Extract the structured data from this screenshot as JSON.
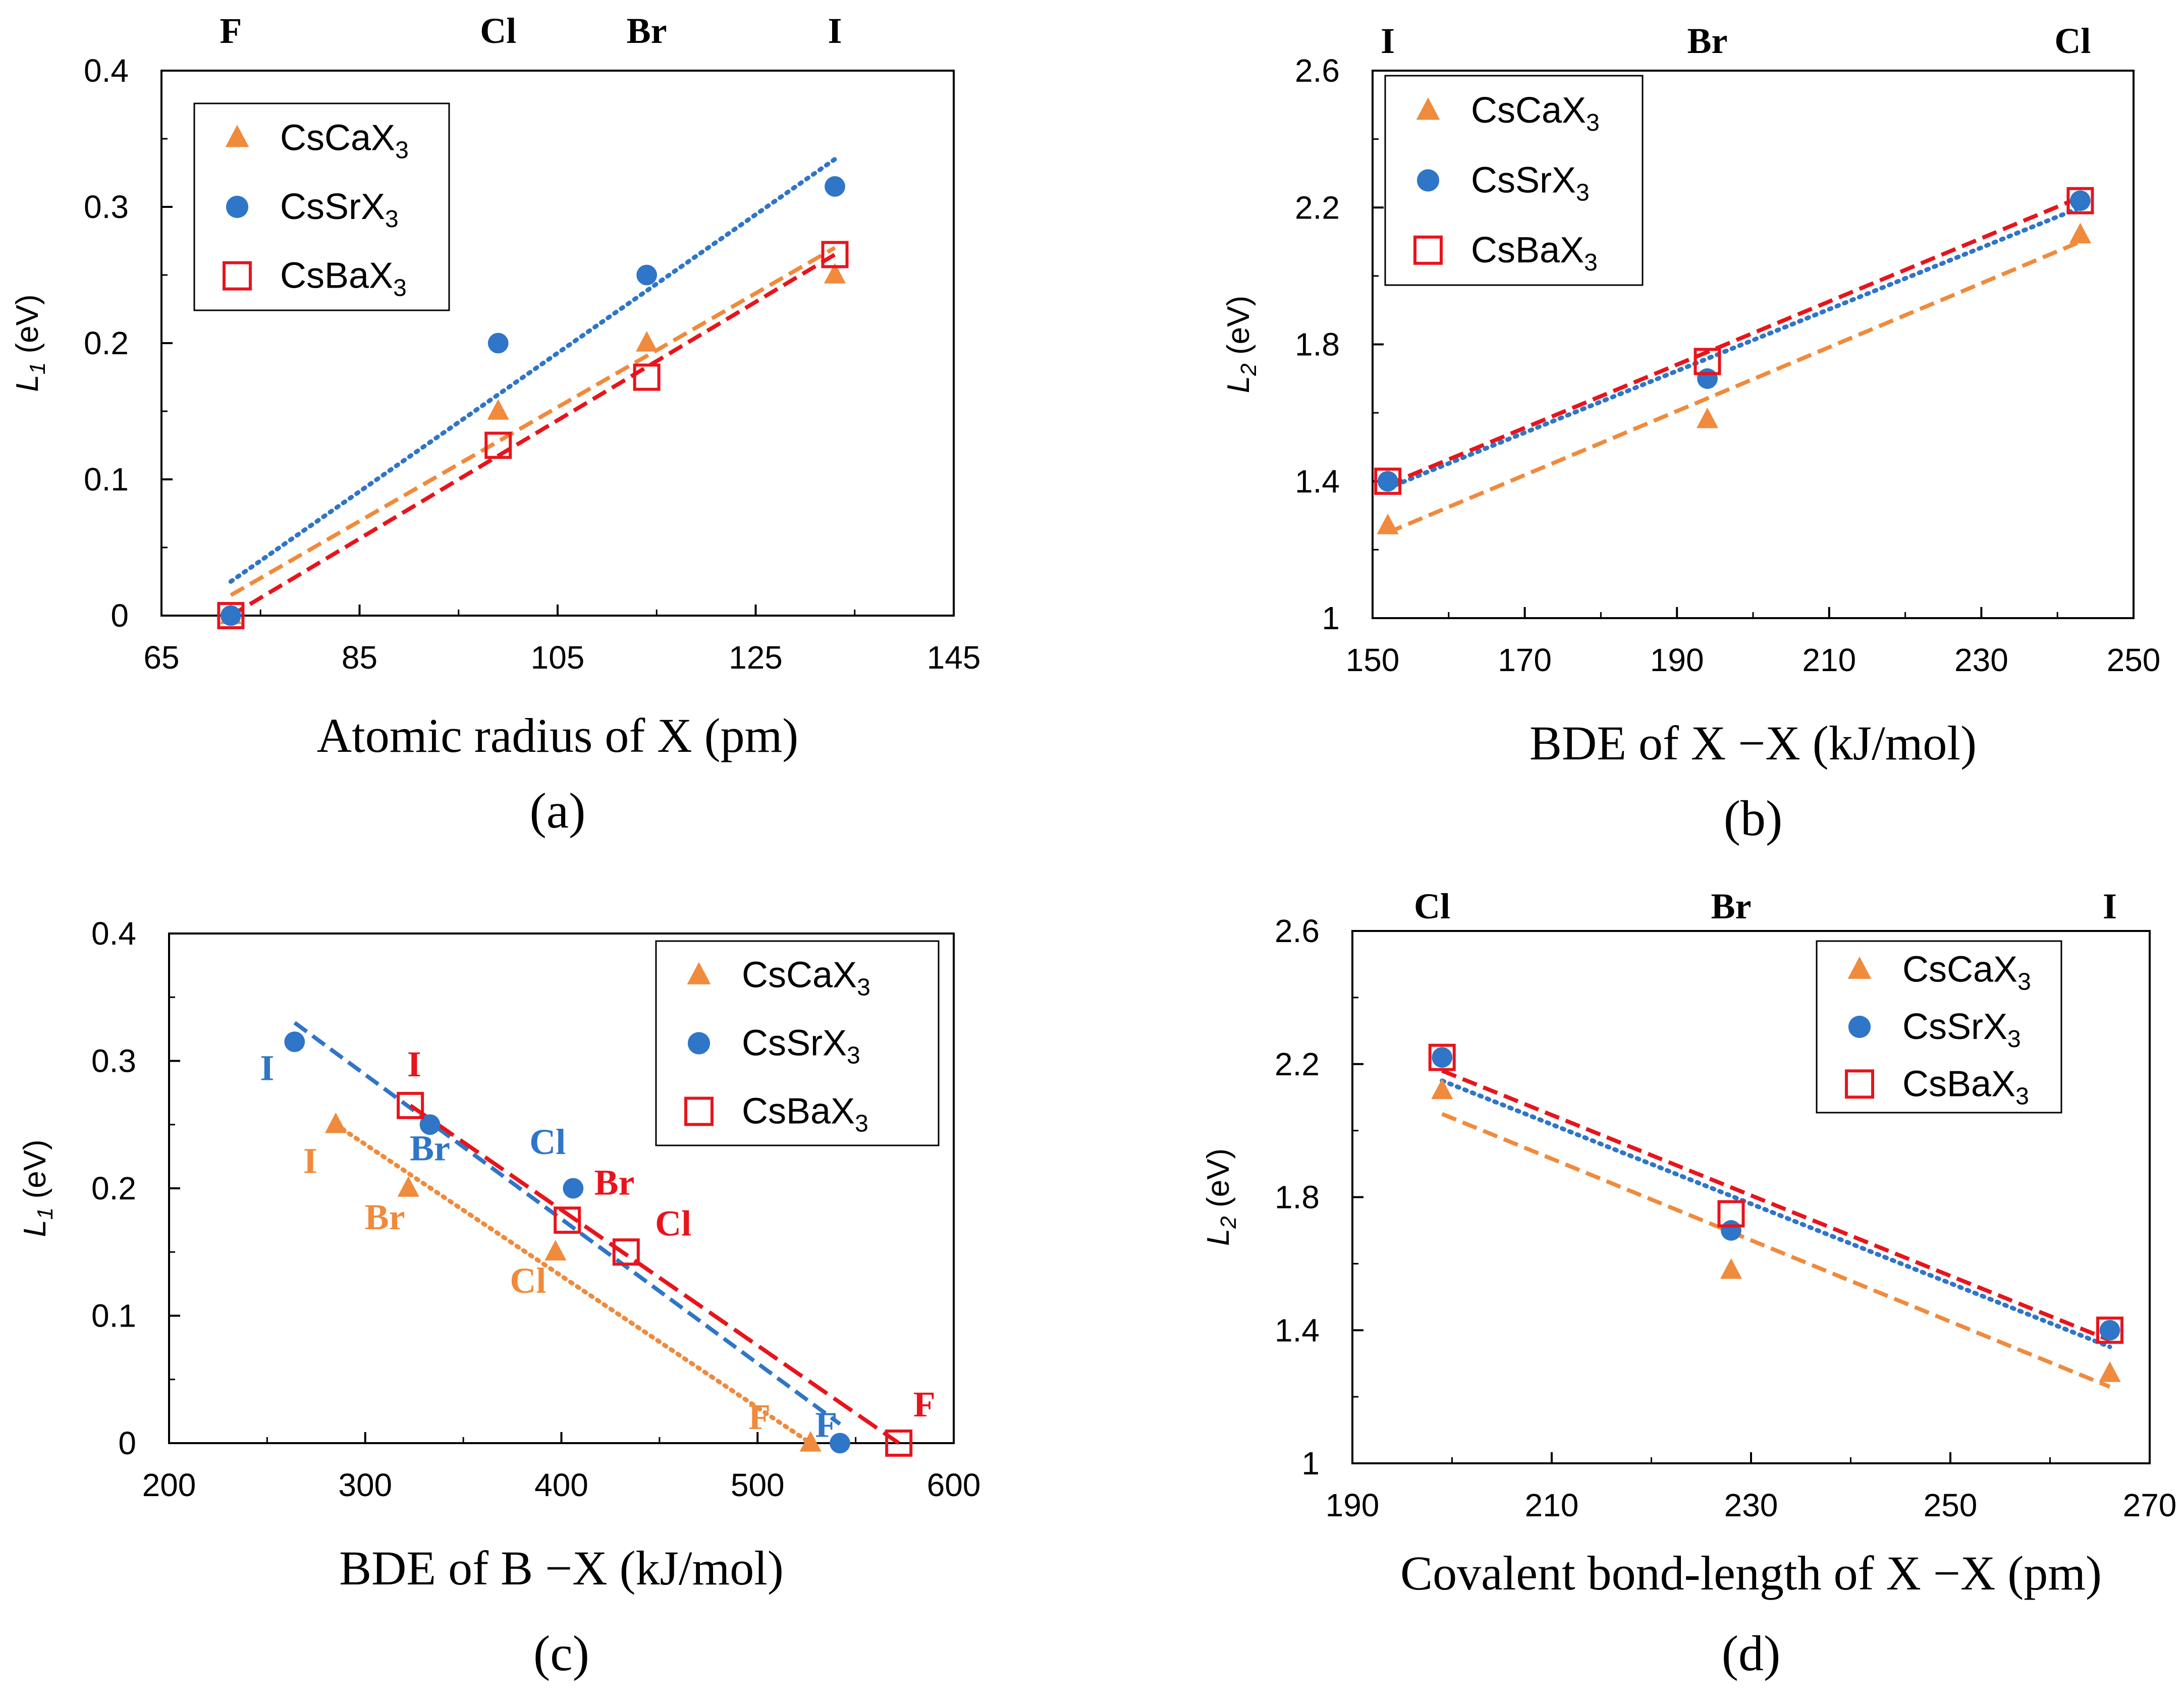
{
  "colors": {
    "ca": "#f08a3c",
    "sr": "#2f75c8",
    "ba": "#e8141c"
  },
  "chart_data": [
    {
      "id": "a",
      "type": "scatter",
      "panel_label": "(a)",
      "xlabel": "Atomic radius of X (pm)",
      "ylabel": {
        "main": "L",
        "sub": "1",
        "unit": " (eV)"
      },
      "xlim": [
        65,
        145
      ],
      "ylim": [
        0,
        0.4
      ],
      "xticks": [
        "65",
        "85",
        "105",
        "125",
        "145"
      ],
      "yticks": [
        "0",
        "0.1",
        "0.2",
        "0.3",
        "0.4"
      ],
      "top_labels": [
        {
          "x": 72,
          "text": "F"
        },
        {
          "x": 99,
          "text": "Cl"
        },
        {
          "x": 114,
          "text": "Br"
        },
        {
          "x": 133,
          "text": "I"
        }
      ],
      "legend": {
        "position": "top-left"
      },
      "series": [
        {
          "name": "CsCaX",
          "sub": "3",
          "key": "ca",
          "marker": "triangle",
          "style": "dash",
          "x": [
            72,
            99,
            114,
            133
          ],
          "y": [
            0,
            0.15,
            0.2,
            0.25
          ],
          "fit": [
            [
              72,
              0.015
            ],
            [
              133,
              0.27
            ]
          ]
        },
        {
          "name": "CsSrX",
          "sub": "3",
          "key": "sr",
          "marker": "circle",
          "style": "dot",
          "x": [
            72,
            99,
            114,
            133
          ],
          "y": [
            0,
            0.2,
            0.25,
            0.315
          ],
          "fit": [
            [
              72,
              0.025
            ],
            [
              133,
              0.335
            ]
          ]
        },
        {
          "name": "CsBaX",
          "sub": "3",
          "key": "ba",
          "marker": "square",
          "style": "dash",
          "x": [
            72,
            99,
            114,
            133
          ],
          "y": [
            0,
            0.125,
            0.175,
            0.265
          ],
          "fit": [
            [
              72,
              0.0
            ],
            [
              133,
              0.265
            ]
          ]
        }
      ],
      "annotations": []
    },
    {
      "id": "b",
      "type": "scatter",
      "panel_label": "(b)",
      "xlabel": "BDE of X −X (kJ/mol)",
      "ylabel": {
        "main": "L",
        "sub": "2",
        "unit": " (eV)"
      },
      "xlim": [
        150,
        250
      ],
      "ylim": [
        1,
        2.6
      ],
      "xticks": [
        "150",
        "170",
        "190",
        "210",
        "230",
        "250"
      ],
      "yticks": [
        "1",
        "1.4",
        "1.8",
        "2.2",
        "2.6"
      ],
      "top_labels": [
        {
          "x": 152,
          "text": "I"
        },
        {
          "x": 194,
          "text": "Br"
        },
        {
          "x": 242,
          "text": "Cl"
        }
      ],
      "legend": {
        "position": "top-left"
      },
      "series": [
        {
          "name": "CsCaX",
          "sub": "3",
          "key": "ca",
          "marker": "triangle",
          "style": "dash",
          "x": [
            152,
            194,
            243
          ],
          "y": [
            1.27,
            1.58,
            2.12
          ],
          "fit": [
            [
              152,
              1.25
            ],
            [
              243,
              2.1
            ]
          ]
        },
        {
          "name": "CsSrX",
          "sub": "3",
          "key": "sr",
          "marker": "circle",
          "style": "dot",
          "x": [
            152,
            194,
            243
          ],
          "y": [
            1.4,
            1.7,
            2.22
          ],
          "fit": [
            [
              152,
              1.38
            ],
            [
              243,
              2.2
            ]
          ]
        },
        {
          "name": "CsBaX",
          "sub": "3",
          "key": "ba",
          "marker": "square",
          "style": "dash",
          "x": [
            152,
            194,
            243
          ],
          "y": [
            1.4,
            1.75,
            2.22
          ],
          "fit": [
            [
              152,
              1.39
            ],
            [
              243,
              2.23
            ]
          ]
        }
      ],
      "annotations": []
    },
    {
      "id": "c",
      "type": "scatter",
      "panel_label": "(c)",
      "xlabel": "BDE of B −X (kJ/mol)",
      "ylabel": {
        "main": "L",
        "sub": "1",
        "unit": " (eV)"
      },
      "xlim": [
        200,
        600
      ],
      "ylim": [
        0,
        0.4
      ],
      "xticks": [
        "200",
        "300",
        "400",
        "500",
        "600"
      ],
      "yticks": [
        "0",
        "0.1",
        "0.2",
        "0.3",
        "0.4"
      ],
      "top_labels": [],
      "legend": {
        "position": "top-right"
      },
      "series": [
        {
          "name": "CsCaX",
          "sub": "3",
          "key": "ca",
          "marker": "triangle",
          "style": "dot",
          "x": [
            285,
            322,
            397,
            527
          ],
          "y": [
            0.25,
            0.2,
            0.15,
            0.0
          ],
          "fit": [
            [
              285,
              0.25
            ],
            [
              527,
              0.0
            ]
          ]
        },
        {
          "name": "CsSrX",
          "sub": "3",
          "key": "sr",
          "marker": "circle",
          "style": "dash",
          "x": [
            264,
            333,
            406,
            542
          ],
          "y": [
            0.315,
            0.25,
            0.2,
            0.0
          ],
          "fit": [
            [
              264,
              0.33
            ],
            [
              542,
              0.015
            ]
          ]
        },
        {
          "name": "CsBaX",
          "sub": "3",
          "key": "ba",
          "marker": "square",
          "style": "longdash",
          "x": [
            323,
            403,
            433,
            572
          ],
          "y": [
            0.265,
            0.175,
            0.15,
            0.0
          ],
          "fit": [
            [
              323,
              0.265
            ],
            [
              572,
              0.0
            ]
          ]
        }
      ],
      "annotations": [
        {
          "text": "I",
          "key": "sr",
          "x": 250,
          "y": 0.285
        },
        {
          "text": "Br",
          "key": "sr",
          "x": 333,
          "y": 0.222
        },
        {
          "text": "Cl",
          "key": "sr",
          "x": 393,
          "y": 0.227
        },
        {
          "text": "F",
          "key": "sr",
          "x": 535,
          "y": 0.005
        },
        {
          "text": "I",
          "key": "ba",
          "x": 325,
          "y": 0.288
        },
        {
          "text": "Br",
          "key": "ba",
          "x": 427,
          "y": 0.195
        },
        {
          "text": "Cl",
          "key": "ba",
          "x": 457,
          "y": 0.163
        },
        {
          "text": "F",
          "key": "ba",
          "x": 585,
          "y": 0.021
        },
        {
          "text": "I",
          "key": "ca",
          "x": 272,
          "y": 0.212
        },
        {
          "text": "Br",
          "key": "ca",
          "x": 310,
          "y": 0.168
        },
        {
          "text": "Cl",
          "key": "ca",
          "x": 383,
          "y": 0.118
        },
        {
          "text": "F",
          "key": "ca",
          "x": 501,
          "y": 0.011
        }
      ]
    },
    {
      "id": "d",
      "type": "scatter",
      "panel_label": "(d)",
      "xlabel": "Covalent bond-length of X −X (pm)",
      "ylabel": {
        "main": "L",
        "sub": "2",
        "unit": " (eV)"
      },
      "xlim": [
        190,
        270
      ],
      "ylim": [
        1,
        2.6
      ],
      "xticks": [
        "190",
        "210",
        "230",
        "250",
        "270"
      ],
      "yticks": [
        "1",
        "1.4",
        "1.8",
        "2.2",
        "2.6"
      ],
      "top_labels": [
        {
          "x": 198,
          "text": "Cl"
        },
        {
          "x": 228,
          "text": "Br"
        },
        {
          "x": 266,
          "text": "I"
        }
      ],
      "legend": {
        "position": "top-right"
      },
      "series": [
        {
          "name": "CsCaX",
          "sub": "3",
          "key": "ca",
          "marker": "triangle",
          "style": "dash",
          "x": [
            199,
            228,
            266
          ],
          "y": [
            2.12,
            1.58,
            1.27
          ],
          "fit": [
            [
              199,
              2.05
            ],
            [
              266,
              1.23
            ]
          ]
        },
        {
          "name": "CsSrX",
          "sub": "3",
          "key": "sr",
          "marker": "circle",
          "style": "dot",
          "x": [
            199,
            228,
            266
          ],
          "y": [
            2.22,
            1.7,
            1.4
          ],
          "fit": [
            [
              199,
              2.15
            ],
            [
              266,
              1.35
            ]
          ]
        },
        {
          "name": "CsBaX",
          "sub": "3",
          "key": "ba",
          "marker": "square",
          "style": "dash",
          "x": [
            199,
            228,
            266
          ],
          "y": [
            2.22,
            1.75,
            1.4
          ],
          "fit": [
            [
              199,
              2.18
            ],
            [
              266,
              1.37
            ]
          ]
        }
      ],
      "annotations": []
    }
  ]
}
